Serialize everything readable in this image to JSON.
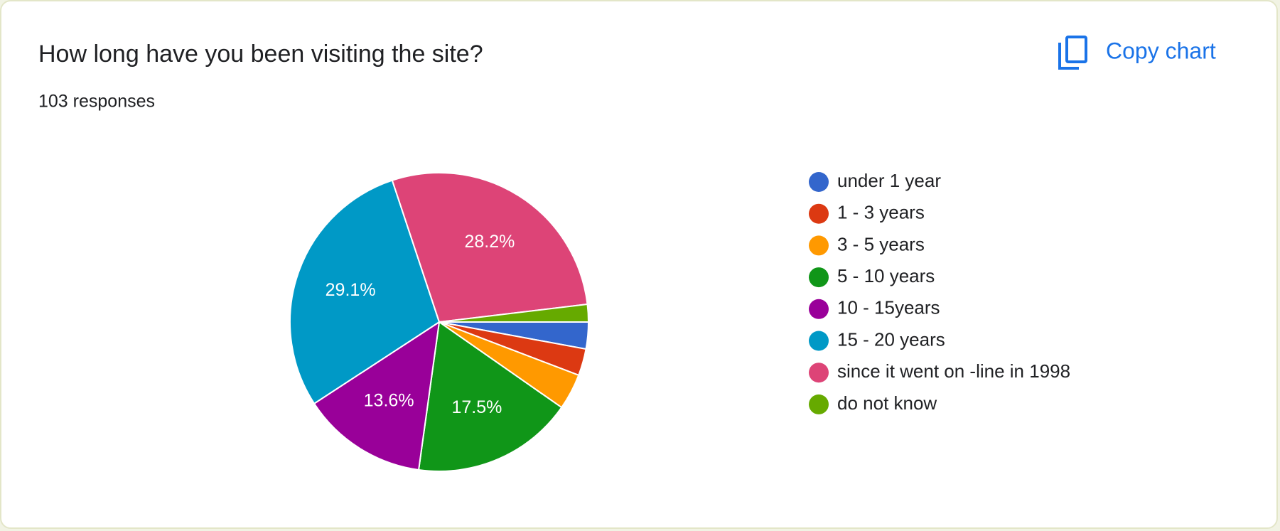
{
  "chart_data": {
    "type": "pie",
    "title": "How long have you been visiting the site?",
    "subtitle": "103 responses",
    "categories": [
      "under 1 year",
      "1 - 3 years",
      "3 - 5 years",
      "5 - 10 years",
      "10 - 15years",
      "15 - 20 years",
      "since it went on -line in 1998",
      "do not know"
    ],
    "values": [
      2.9,
      2.9,
      3.9,
      17.5,
      13.6,
      29.1,
      28.2,
      1.9
    ],
    "value_labels": [
      null,
      null,
      null,
      "17.5%",
      "13.6%",
      "29.1%",
      "28.2%",
      null
    ],
    "colors": [
      "#3366cc",
      "#dc3912",
      "#ff9900",
      "#109618",
      "#990099",
      "#0099c6",
      "#dd4477",
      "#66aa00"
    ],
    "legend": "right"
  },
  "copy_button": "Copy chart"
}
